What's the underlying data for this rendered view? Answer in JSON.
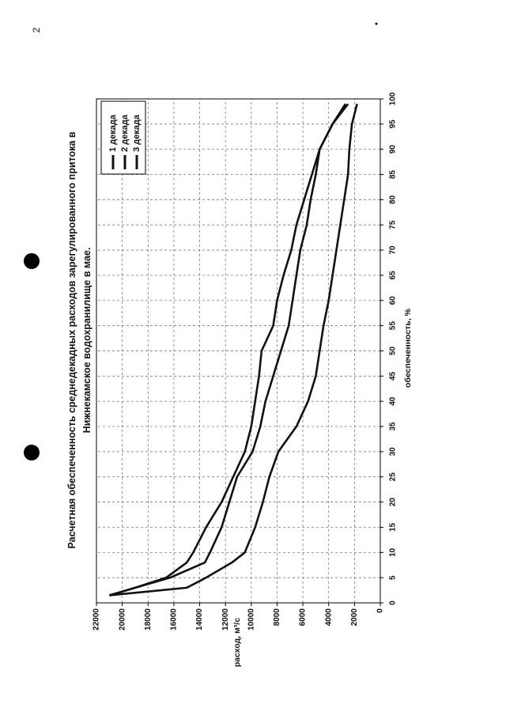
{
  "page_number": "2",
  "chart_data": {
    "type": "line",
    "title": [
      "Расчетная обеспеченность среднедекадных расходов зарегулированного притока в",
      "Нижнекамское водохранилище в мае."
    ],
    "x_label": "обеспеченность, %",
    "y_label": "расход, м³/с",
    "x": [
      1.5,
      3,
      5,
      8,
      10,
      15,
      20,
      25,
      30,
      35,
      40,
      45,
      50,
      55,
      60,
      65,
      70,
      75,
      80,
      85,
      90,
      95,
      99
    ],
    "series": [
      {
        "name": "1 декада",
        "color": "#111111",
        "values": [
          21000,
          15000,
          13500,
          11500,
          10500,
          9700,
          9100,
          8600,
          7900,
          6500,
          5600,
          5000,
          4700,
          4400,
          4000,
          3700,
          3400,
          3100,
          2800,
          2500,
          2400,
          2200,
          1800
        ]
      },
      {
        "name": "2 декада",
        "color": "#111111",
        "values": [
          21000,
          19000,
          16300,
          13600,
          13200,
          12300,
          11700,
          11100,
          9900,
          9300,
          8900,
          8300,
          7700,
          7100,
          6800,
          6500,
          6200,
          5700,
          5400,
          5000,
          4700,
          3700,
          2500
        ]
      },
      {
        "name": "3 декада",
        "color": "#111111",
        "values": [
          21000,
          19000,
          16600,
          15000,
          14500,
          13500,
          12300,
          11400,
          10500,
          10000,
          9700,
          9400,
          9200,
          8300,
          8000,
          7500,
          6900,
          6500,
          5900,
          5300,
          4700,
          3700,
          2700
        ]
      }
    ],
    "xlim": [
      0,
      100
    ],
    "xticks": [
      0,
      5,
      10,
      15,
      20,
      25,
      30,
      35,
      40,
      45,
      50,
      55,
      60,
      65,
      70,
      75,
      80,
      85,
      90,
      95,
      100
    ],
    "ylim": [
      0,
      22000
    ],
    "yticks": [
      0,
      2000,
      4000,
      6000,
      8000,
      10000,
      12000,
      14000,
      16000,
      18000,
      20000,
      22000
    ],
    "grid": true,
    "legend": "top-right"
  }
}
